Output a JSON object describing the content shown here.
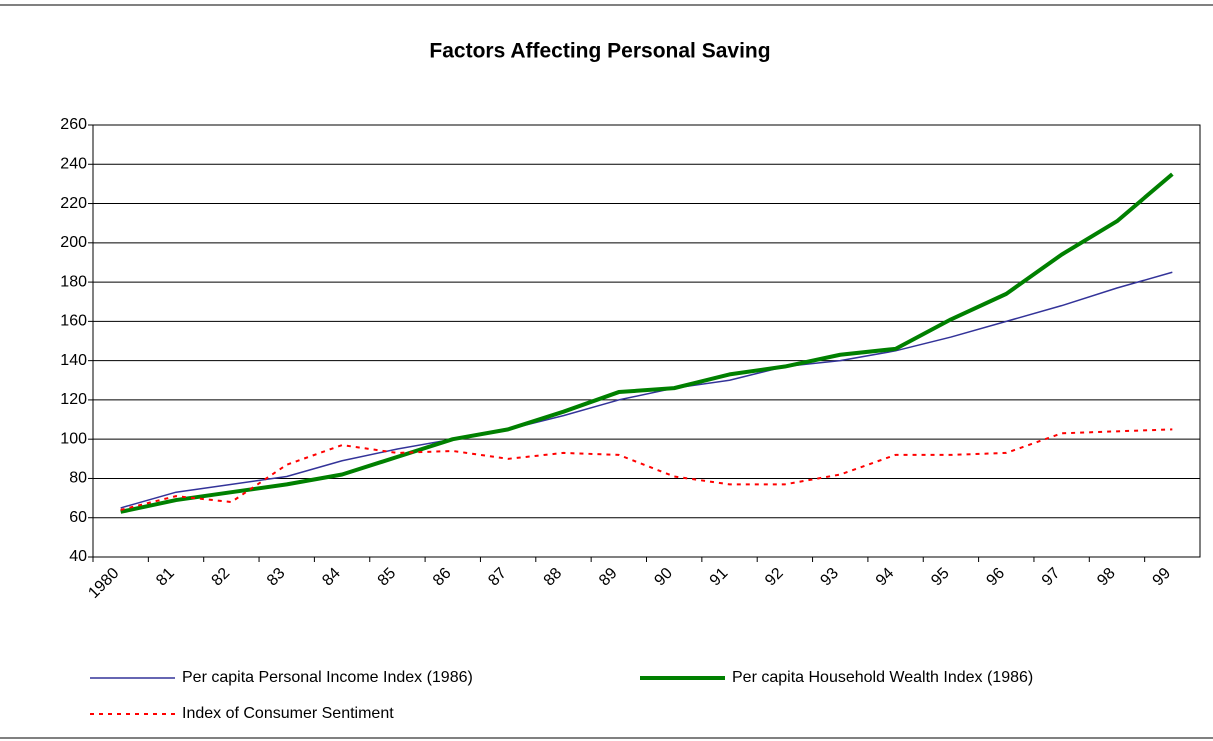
{
  "chart_data": {
    "type": "line",
    "title": "Factors Affecting Personal Saving",
    "categories": [
      "1980",
      "81",
      "82",
      "83",
      "84",
      "85",
      "86",
      "87",
      "88",
      "89",
      "90",
      "91",
      "92",
      "93",
      "94",
      "95",
      "96",
      "97",
      "98",
      "99"
    ],
    "series": [
      {
        "name": "Per capita Personal Income Index (1986)",
        "color": "#333399",
        "values": [
          65,
          73,
          77,
          81,
          89,
          95,
          100,
          105,
          112,
          120,
          126,
          130,
          137,
          140,
          145,
          152,
          160,
          168,
          177,
          185
        ]
      },
      {
        "name": "Per capita Household Wealth Index (1986)",
        "color": "#008000",
        "values": [
          63,
          69,
          73,
          77,
          82,
          91,
          100,
          105,
          114,
          124,
          126,
          133,
          137,
          143,
          146,
          161,
          174,
          194,
          211,
          235
        ]
      },
      {
        "name": "Index of Consumer Sentiment",
        "color": "#ff0000",
        "values": [
          64,
          71,
          68,
          87,
          97,
          93,
          94,
          90,
          93,
          92,
          81,
          77,
          77,
          82,
          92,
          92,
          93,
          103,
          104,
          105
        ]
      }
    ],
    "ylim": [
      40,
      260
    ],
    "yticks": [
      40,
      60,
      80,
      100,
      120,
      140,
      160,
      180,
      200,
      220,
      240,
      260
    ],
    "grid": true
  }
}
